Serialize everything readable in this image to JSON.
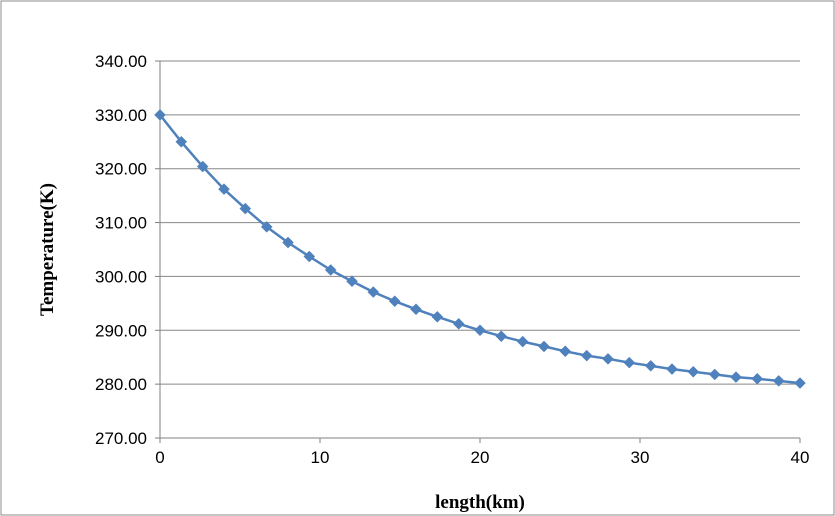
{
  "chart_data": {
    "type": "line",
    "title": "",
    "xlabel": "length(km)",
    "ylabel": "Temperature(K)",
    "xlim": [
      0,
      40
    ],
    "ylim": [
      270,
      340
    ],
    "x_ticks": [
      0,
      10,
      20,
      30,
      40
    ],
    "x_tick_labels": [
      "0",
      "10",
      "20",
      "30",
      "40"
    ],
    "y_ticks": [
      270,
      280,
      290,
      300,
      310,
      320,
      330,
      340
    ],
    "y_tick_labels": [
      "270.00",
      "280.00",
      "290.00",
      "300.00",
      "310.00",
      "320.00",
      "330.00",
      "340.00"
    ],
    "grid": "horizontal major gridlines",
    "legend": "none",
    "series": [
      {
        "color": "#4F81BD",
        "marker": "diamond",
        "x": [
          0,
          1.33,
          2.67,
          4.0,
          5.33,
          6.67,
          8.0,
          9.33,
          10.67,
          12.0,
          13.33,
          14.67,
          16.0,
          17.33,
          18.67,
          20.0,
          21.33,
          22.67,
          24.0,
          25.33,
          26.67,
          28.0,
          29.33,
          30.67,
          32.0,
          33.33,
          34.67,
          36.0,
          37.33,
          38.67,
          40.0
        ],
        "y": [
          330.0,
          325.0,
          320.4,
          316.2,
          312.6,
          309.2,
          306.3,
          303.7,
          301.2,
          299.1,
          297.1,
          295.4,
          293.9,
          292.5,
          291.2,
          290.0,
          288.9,
          287.9,
          287.0,
          286.1,
          285.3,
          284.7,
          284.0,
          283.4,
          282.8,
          282.3,
          281.8,
          281.3,
          281.0,
          280.6,
          280.2
        ]
      }
    ]
  }
}
